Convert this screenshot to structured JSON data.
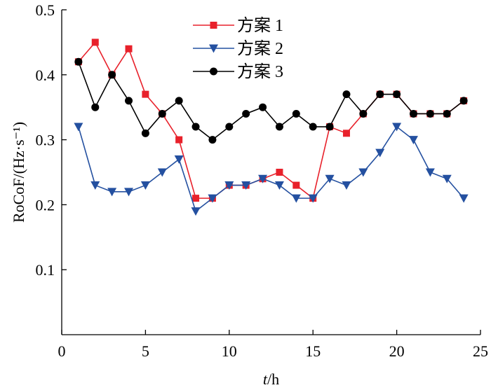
{
  "chart_data": {
    "type": "line",
    "xlabel": "t/h",
    "ylabel": "RoCoF/(Hz·s⁻¹)",
    "xlim": [
      0,
      25
    ],
    "ylim": [
      0,
      0.5
    ],
    "xticks": [
      "0",
      "5",
      "10",
      "15",
      "20",
      "25"
    ],
    "yticks": [
      "0.1",
      "0.2",
      "0.3",
      "0.4",
      "0.5"
    ],
    "legend_position": "top-center",
    "grid": false,
    "x": [
      1,
      2,
      3,
      4,
      5,
      6,
      7,
      8,
      9,
      10,
      11,
      12,
      13,
      14,
      15,
      16,
      17,
      18,
      19,
      20,
      21,
      22,
      23,
      24
    ],
    "series": [
      {
        "name": "方案 1",
        "color": "#e8212b",
        "marker": "square",
        "values": [
          0.42,
          0.45,
          0.4,
          0.44,
          0.37,
          0.34,
          0.3,
          0.21,
          0.21,
          0.23,
          0.23,
          0.24,
          0.25,
          0.23,
          0.21,
          0.32,
          0.31,
          0.34,
          0.37,
          0.37,
          0.34,
          0.34,
          0.34,
          0.36
        ]
      },
      {
        "name": "方案 2",
        "color": "#2450a0",
        "marker": "triangle-down",
        "values": [
          0.32,
          0.23,
          0.22,
          0.22,
          0.23,
          0.25,
          0.27,
          0.19,
          0.21,
          0.23,
          0.23,
          0.24,
          0.23,
          0.21,
          0.21,
          0.24,
          0.23,
          0.25,
          0.28,
          0.32,
          0.3,
          0.25,
          0.24,
          0.21
        ]
      },
      {
        "name": "方案 3",
        "color": "#000000",
        "marker": "circle",
        "values": [
          0.42,
          0.35,
          0.4,
          0.36,
          0.31,
          0.34,
          0.36,
          0.32,
          0.3,
          0.32,
          0.34,
          0.35,
          0.32,
          0.34,
          0.32,
          0.32,
          0.37,
          0.34,
          0.37,
          0.37,
          0.34,
          0.34,
          0.34,
          0.36
        ]
      }
    ]
  }
}
